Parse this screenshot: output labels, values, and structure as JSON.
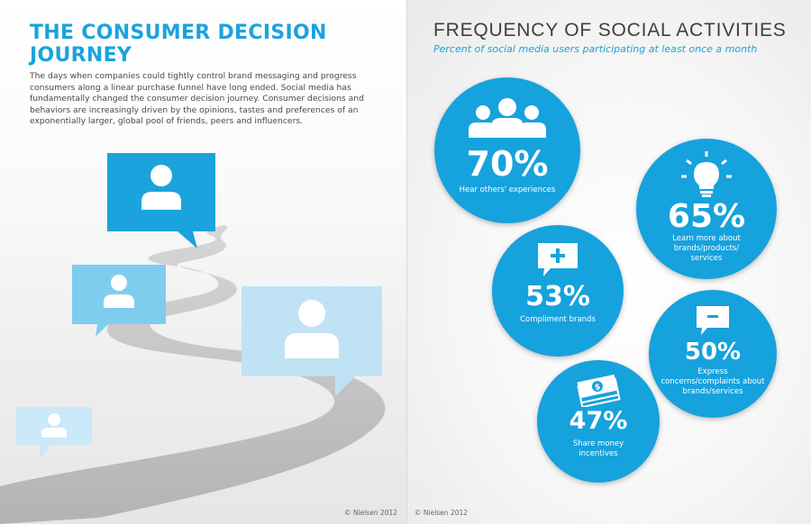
{
  "left": {
    "title": "THE CONSUMER DECISION JOURNEY",
    "body": "The days when companies could tightly control brand messaging and progress consumers along a linear purchase funnel have long ended. Social media has fundamentally changed the consumer decision journey. Consumer decisions and behaviors are increasingly driven by the opinions, tastes and preferences of an exponentially larger, global pool of friends, peers and influencers.",
    "credit": "© Nielsen 2012"
  },
  "right": {
    "title": "FREQUENCY OF SOCIAL ACTIVITIES",
    "subtitle": "Percent of social media users participating at least once a month",
    "credit": "© Nielsen 2012",
    "activities": [
      {
        "value": "70%",
        "label": "Hear others' experiences",
        "icon": "people-group-icon"
      },
      {
        "value": "65%",
        "label": "Learn more about brands/products/ services",
        "icon": "lightbulb-icon"
      },
      {
        "value": "53%",
        "label": "Compliment brands",
        "icon": "plus-speech-bubble-icon"
      },
      {
        "value": "50%",
        "label": "Express concerns/complaints about brands/services",
        "icon": "minus-speech-bubble-icon"
      },
      {
        "value": "47%",
        "label": "Share money incentives",
        "icon": "money-bills-icon"
      }
    ]
  },
  "colors": {
    "accent": "#16a2dd",
    "bubble_dark": "#1aa3dc",
    "bubble_mid": "#7fcdee",
    "bubble_light": "#bfe3f5",
    "road": "#bcbcbc"
  }
}
